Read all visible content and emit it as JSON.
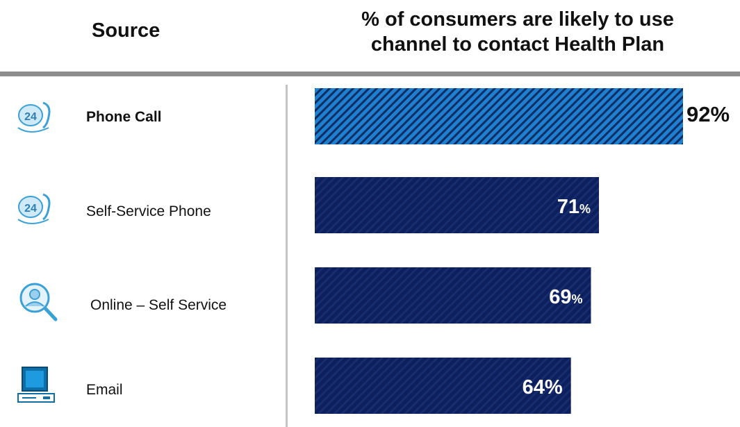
{
  "header": {
    "source_label": "Source",
    "title_line1": "% of consumers are likely to use",
    "title_line2": "channel to contact Health Plan"
  },
  "rows": [
    {
      "label": "Phone Call",
      "icon": "phone-24-icon"
    },
    {
      "label": "Self-Service Phone",
      "icon": "phone-24-icon"
    },
    {
      "label": "Online – Self Service",
      "icon": "user-search-icon"
    },
    {
      "label": "Email",
      "icon": "computer-icon"
    }
  ],
  "colors": {
    "highlight_bar": "#1f7fd0",
    "bar": "#0d1f5c",
    "stripe": "#0a1f4e",
    "icon": "#3aa0d8"
  },
  "chart_data": {
    "type": "bar",
    "orientation": "horizontal",
    "categories": [
      "Phone Call",
      "Self-Service Phone",
      "Online – Self Service",
      "Email"
    ],
    "values": [
      92,
      71,
      69,
      64
    ],
    "data_labels": [
      "92%",
      "71%",
      "69%",
      "64%"
    ],
    "title": "% of consumers are likely to use channel to contact Health Plan",
    "xlim": [
      0,
      100
    ],
    "highlight_index": 0
  }
}
